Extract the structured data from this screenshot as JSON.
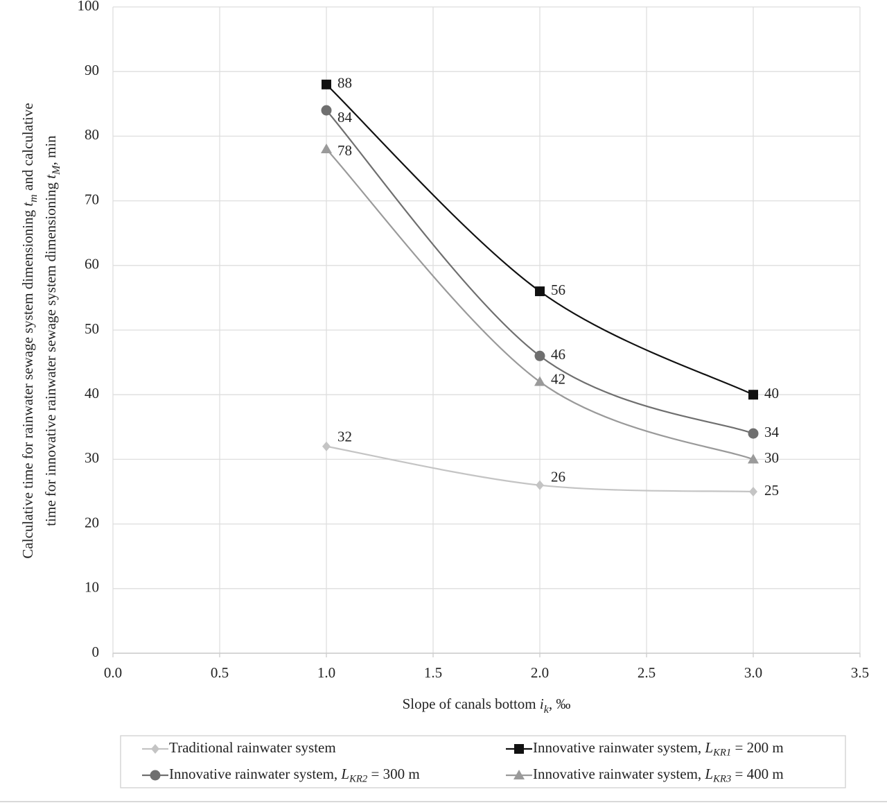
{
  "chart_data": {
    "type": "line",
    "y_label": [
      [
        "Calculative time for rainwater sewage system dimensioning ",
        "t",
        "m",
        " and calculative"
      ],
      [
        "time for innovative rainwater sewage system dimensioning ",
        "t",
        "M",
        ", min"
      ]
    ],
    "x_label": [
      "Slope of canals bottom ",
      "i",
      "k",
      ", ‰"
    ],
    "x": [
      1,
      2,
      3
    ],
    "series": [
      {
        "name": [
          "Traditional rainwater system"
        ],
        "color": "#c4c4c4",
        "marker": "diamond",
        "values": [
          32,
          26,
          25
        ]
      },
      {
        "name": [
          "Innovative rainwater system, ",
          "L",
          "KR1",
          " = 200 m"
        ],
        "color": "#111111",
        "marker": "square",
        "values": [
          88,
          56,
          40
        ]
      },
      {
        "name": [
          "Innovative rainwater system, ",
          "L",
          "KR2",
          " = 300 m"
        ],
        "color": "#6f6f6f",
        "marker": "circle",
        "values": [
          84,
          46,
          34
        ]
      },
      {
        "name": [
          "Innovative rainwater system, ",
          "L",
          "KR3",
          " = 400 m"
        ],
        "color": "#9a9a9a",
        "marker": "triangle",
        "values": [
          78,
          42,
          30
        ]
      }
    ],
    "xlim": [
      0,
      3.5
    ],
    "xticks": [
      {
        "value": 0,
        "label": "0.0"
      },
      0.5,
      {
        "value": 1,
        "label": "1.0"
      },
      1.5,
      {
        "value": 2,
        "label": "2.0"
      },
      2.5,
      {
        "value": 3,
        "label": "3.0"
      },
      3.5
    ],
    "ylim": [
      0,
      100
    ],
    "yticks": [
      0,
      10,
      20,
      30,
      40,
      50,
      60,
      70,
      80,
      90,
      100
    ],
    "grid": true,
    "smooth": true,
    "legend": "bottom"
  }
}
